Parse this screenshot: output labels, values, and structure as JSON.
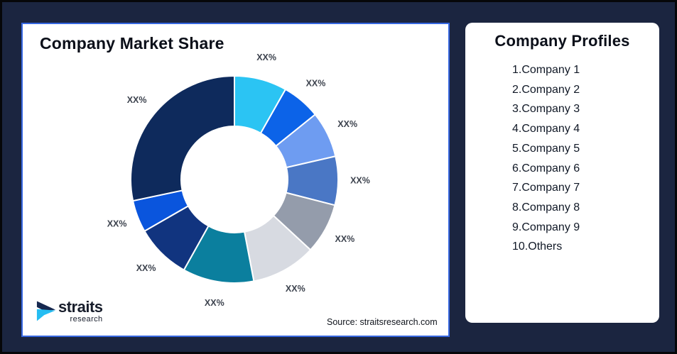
{
  "page": {
    "background_color": "#1B2540",
    "frame_border_color": "#060709"
  },
  "market_share_card": {
    "title": "Company Market Share",
    "source_note": "Source: straitsresearch.com",
    "border_color": "#3667E0",
    "logo": {
      "name": "straits",
      "sub": "research",
      "mark_dark_color": "#16284F",
      "mark_cyan_color": "#25BDF2"
    }
  },
  "profiles_card": {
    "title": "Company Profiles",
    "companies": [
      "1.Company 1",
      "2.Company 2",
      "3.Company 3",
      "4.Company 4",
      "5.Company 5",
      "6.Company 6",
      "7.Company 7",
      "8.Company 8",
      "9.Company 9",
      "10.Others"
    ]
  },
  "chart_data": {
    "type": "pie",
    "subtype": "donut",
    "title": "Company Market Share",
    "start_angle_deg": 0,
    "direction": "clockwise",
    "outer_radius": 146,
    "inner_radius": 75,
    "label_radius": 177,
    "label_color": "#3D434E",
    "gap_color": "#FFFFFF",
    "legend": "none",
    "slices": [
      {
        "label": "XX%",
        "value_pct": 8.2,
        "color": "#2BC4F3"
      },
      {
        "label": "XX%",
        "value_pct": 6.0,
        "color": "#0C63E8"
      },
      {
        "label": "XX%",
        "value_pct": 7.2,
        "color": "#6E9CF1"
      },
      {
        "label": "XX%",
        "value_pct": 7.6,
        "color": "#4A77C5"
      },
      {
        "label": "XX%",
        "value_pct": 7.9,
        "color": "#949CAB"
      },
      {
        "label": "XX%",
        "value_pct": 10.1,
        "color": "#D7DAE1"
      },
      {
        "label": "XX%",
        "value_pct": 11.1,
        "color": "#0B7F9E"
      },
      {
        "label": "XX%",
        "value_pct": 8.6,
        "color": "#11347F"
      },
      {
        "label": "XX%",
        "value_pct": 5.0,
        "color": "#0A55DD"
      },
      {
        "label": "XX%",
        "value_pct": 28.3,
        "color": "#0E2A5C"
      }
    ]
  }
}
